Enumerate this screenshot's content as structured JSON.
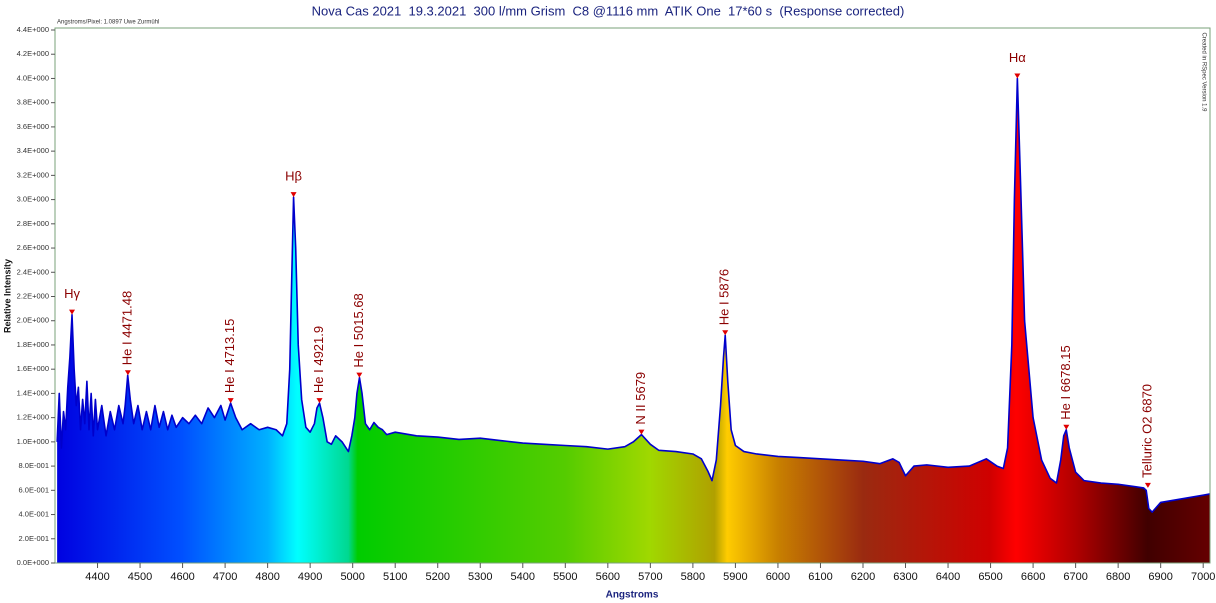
{
  "chart_data": {
    "type": "area",
    "title": "Nova Cas 2021  19.3.2021  300 l/mm Grism  C8 @1116 mm  ATIK One  17*60 s  (Response corrected)",
    "note": "Angstroms/Pixel: 1.0897 Uwe Zurmühl",
    "credit": "Created in RSpec Version 1.9",
    "xlabel": "Angstroms",
    "ylabel": "Relative Intensity",
    "color": "#0000cc",
    "xlim": [
      4300,
      7016
    ],
    "ylim": [
      0,
      4.4
    ],
    "xticks": [
      4400,
      4500,
      4600,
      4700,
      4800,
      4900,
      5000,
      5100,
      5200,
      5300,
      5400,
      5500,
      5600,
      5700,
      5800,
      5900,
      6000,
      6100,
      6200,
      6300,
      6400,
      6500,
      6600,
      6700,
      6800,
      6900,
      7000
    ],
    "yticks": [
      {
        "value": 0,
        "label": "0.0E+000"
      },
      {
        "value": 0.2,
        "label": "2.0E-001"
      },
      {
        "value": 0.4,
        "label": "4.0E-001"
      },
      {
        "value": 0.6,
        "label": "6.0E-001"
      },
      {
        "value": 0.8,
        "label": "8.0E-001"
      },
      {
        "value": 1.0,
        "label": "1.0E+000"
      },
      {
        "value": 1.2,
        "label": "1.2E+000"
      },
      {
        "value": 1.4,
        "label": "1.4E+000"
      },
      {
        "value": 1.6,
        "label": "1.6E+000"
      },
      {
        "value": 1.8,
        "label": "1.8E+000"
      },
      {
        "value": 2.0,
        "label": "2.0E+000"
      },
      {
        "value": 2.2,
        "label": "2.2E+000"
      },
      {
        "value": 2.4,
        "label": "2.4E+000"
      },
      {
        "value": 2.6,
        "label": "2.6E+000"
      },
      {
        "value": 2.8,
        "label": "2.8E+000"
      },
      {
        "value": 3.0,
        "label": "3.0E+000"
      },
      {
        "value": 3.2,
        "label": "3.2E+000"
      },
      {
        "value": 3.4,
        "label": "3.4E+000"
      },
      {
        "value": 3.6,
        "label": "3.6E+000"
      },
      {
        "value": 3.8,
        "label": "3.8E+000"
      },
      {
        "value": 4.0,
        "label": "4.0E+000"
      },
      {
        "value": 4.2,
        "label": "4.2E+000"
      },
      {
        "value": 4.4,
        "label": "4.4E+000"
      }
    ],
    "x": [
      4305,
      4310,
      4315,
      4320,
      4325,
      4330,
      4335,
      4340,
      4345,
      4350,
      4355,
      4360,
      4365,
      4370,
      4375,
      4380,
      4385,
      4390,
      4395,
      4400,
      4410,
      4420,
      4430,
      4440,
      4450,
      4460,
      4465,
      4471,
      4477,
      4485,
      4495,
      4505,
      4515,
      4525,
      4535,
      4545,
      4555,
      4565,
      4575,
      4585,
      4600,
      4615,
      4630,
      4645,
      4660,
      4675,
      4690,
      4700,
      4713,
      4725,
      4740,
      4760,
      4780,
      4800,
      4820,
      4835,
      4845,
      4852,
      4857,
      4861,
      4866,
      4872,
      4880,
      4890,
      4900,
      4910,
      4916,
      4922,
      4930,
      4940,
      4950,
      4960,
      4975,
      4990,
      4998,
      5005,
      5010,
      5016,
      5022,
      5030,
      5040,
      5050,
      5060,
      5070,
      5080,
      5100,
      5150,
      5200,
      5250,
      5300,
      5350,
      5400,
      5450,
      5500,
      5550,
      5600,
      5640,
      5660,
      5679,
      5700,
      5720,
      5760,
      5800,
      5820,
      5835,
      5845,
      5855,
      5865,
      5872,
      5876,
      5882,
      5890,
      5900,
      5920,
      5950,
      6000,
      6050,
      6100,
      6150,
      6200,
      6240,
      6270,
      6285,
      6300,
      6320,
      6350,
      6400,
      6450,
      6490,
      6515,
      6530,
      6540,
      6550,
      6556,
      6563,
      6570,
      6580,
      6600,
      6620,
      6640,
      6655,
      6665,
      6672,
      6678,
      6685,
      6700,
      6720,
      6760,
      6800,
      6840,
      6860,
      6866,
      6872,
      6880,
      6900,
      6950,
      7000,
      7016
    ],
    "values": [
      1.0,
      1.4,
      0.95,
      1.25,
      1.1,
      1.45,
      1.7,
      2.05,
      1.6,
      1.3,
      1.45,
      1.1,
      1.35,
      1.15,
      1.5,
      1.1,
      1.4,
      1.05,
      1.35,
      1.1,
      1.3,
      1.05,
      1.25,
      1.1,
      1.3,
      1.15,
      1.3,
      1.55,
      1.35,
      1.15,
      1.3,
      1.1,
      1.25,
      1.1,
      1.3,
      1.12,
      1.25,
      1.1,
      1.22,
      1.12,
      1.2,
      1.15,
      1.22,
      1.15,
      1.28,
      1.2,
      1.3,
      1.18,
      1.32,
      1.2,
      1.1,
      1.15,
      1.1,
      1.12,
      1.1,
      1.05,
      1.15,
      1.6,
      2.4,
      3.02,
      2.6,
      1.8,
      1.35,
      1.12,
      1.08,
      1.15,
      1.28,
      1.32,
      1.2,
      1.0,
      0.98,
      1.05,
      1.0,
      0.92,
      1.05,
      1.2,
      1.4,
      1.53,
      1.4,
      1.15,
      1.1,
      1.16,
      1.12,
      1.1,
      1.06,
      1.08,
      1.05,
      1.04,
      1.02,
      1.03,
      1.01,
      0.99,
      0.98,
      0.97,
      0.96,
      0.94,
      0.96,
      1.0,
      1.06,
      0.98,
      0.93,
      0.92,
      0.9,
      0.86,
      0.76,
      0.68,
      0.85,
      1.3,
      1.7,
      1.88,
      1.5,
      1.1,
      0.97,
      0.92,
      0.9,
      0.88,
      0.87,
      0.86,
      0.85,
      0.84,
      0.82,
      0.86,
      0.83,
      0.72,
      0.8,
      0.81,
      0.79,
      0.8,
      0.86,
      0.8,
      0.78,
      0.95,
      1.8,
      3.0,
      4.0,
      3.2,
      2.0,
      1.2,
      0.85,
      0.7,
      0.66,
      0.85,
      1.05,
      1.1,
      0.95,
      0.75,
      0.68,
      0.66,
      0.65,
      0.63,
      0.62,
      0.6,
      0.45,
      0.42,
      0.5,
      0.53,
      0.56,
      0.57
    ],
    "annotations": [
      {
        "text": "Hγ",
        "x": 4340,
        "y": 2.05
      },
      {
        "text": "He I 4471.48",
        "x": 4471.48,
        "y": 1.55
      },
      {
        "text": "He I 4713.15",
        "x": 4713.15,
        "y": 1.32
      },
      {
        "text": "Hβ",
        "x": 4861,
        "y": 3.02
      },
      {
        "text": "He I 4921.9",
        "x": 4921.9,
        "y": 1.32
      },
      {
        "text": "He I 5015.68",
        "x": 5015.68,
        "y": 1.53
      },
      {
        "text": "N II 5679",
        "x": 5679,
        "y": 1.06
      },
      {
        "text": "He I 5876",
        "x": 5876,
        "y": 1.88
      },
      {
        "text": "Hα",
        "x": 6563,
        "y": 4.0
      },
      {
        "text": "He I 6678.15",
        "x": 6678.15,
        "y": 1.1
      },
      {
        "text": "Telluric O2 6870",
        "x": 6870,
        "y": 0.62
      }
    ]
  }
}
